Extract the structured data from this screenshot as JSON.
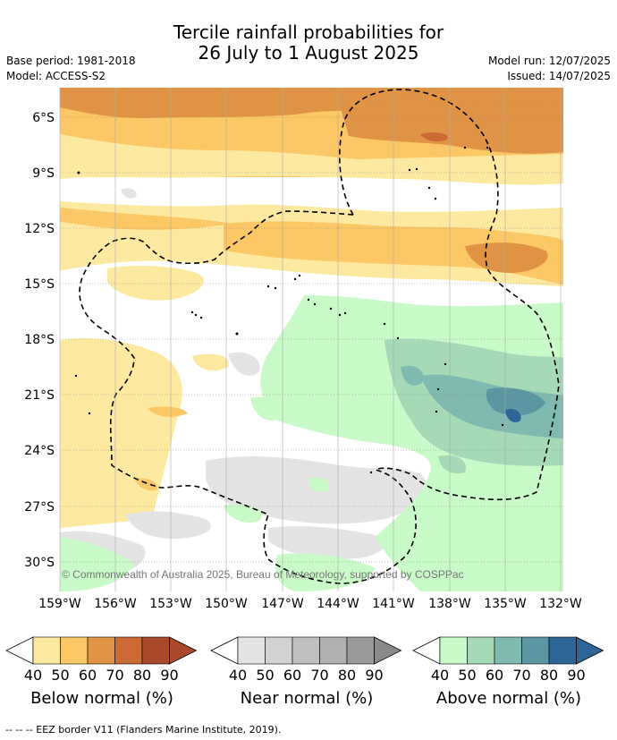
{
  "header": {
    "title_line1": "Tercile rainfall probabilities for",
    "title_line2": "26 July to 1 August 2025",
    "base_period": "Base period: 1981-2018",
    "model": "Model: ACCESS-S2",
    "model_run": "Model run: 12/07/2025",
    "issued": "Issued: 14/07/2025"
  },
  "map": {
    "lat_labels": [
      "6°S",
      "9°S",
      "12°S",
      "15°S",
      "18°S",
      "21°S",
      "24°S",
      "27°S",
      "30°S"
    ],
    "lon_labels": [
      "159°W",
      "156°W",
      "153°W",
      "150°W",
      "147°W",
      "144°W",
      "141°W",
      "138°W",
      "135°W",
      "132°W"
    ],
    "copyright": "© Commonwealth of Australia 2025, Bureau of Meteorology, supported by COSPPac"
  },
  "colorbars": [
    {
      "name": "below",
      "label": "Below normal (%)",
      "ticks": [
        "40",
        "50",
        "60",
        "70",
        "80",
        "90"
      ],
      "colors": [
        "#fdeaa0",
        "#fcc765",
        "#e09344",
        "#cc6a34",
        "#a9482a",
        "#a9482a"
      ]
    },
    {
      "name": "near",
      "label": "Near normal (%)",
      "ticks": [
        "40",
        "50",
        "60",
        "70",
        "80",
        "90"
      ],
      "colors": [
        "#e4e4e4",
        "#d2d2d2",
        "#c0c0c0",
        "#b0b0b0",
        "#9a9a9a",
        "#8a8a8a"
      ]
    },
    {
      "name": "above",
      "label": "Above normal (%)",
      "ticks": [
        "40",
        "50",
        "60",
        "70",
        "80",
        "90"
      ],
      "colors": [
        "#c8fbc8",
        "#a6d9b6",
        "#7fb9b0",
        "#5b96a2",
        "#2e6597",
        "#2e6597"
      ]
    }
  ],
  "colors": {
    "below_40": "#fdeaa0",
    "below_50": "#fcc765",
    "below_60": "#e09344",
    "below_70": "#cc6a34",
    "near_40": "#e4e4e4",
    "near_50": "#d2d2d2",
    "above_40": "#c8fbc8",
    "above_50": "#a6d9b6",
    "above_60": "#7fb9b0",
    "above_70": "#5b96a2"
  },
  "footer": {
    "eez_note": "--  --  -- EEZ border V11 (Flanders Marine Institute, 2019)."
  }
}
